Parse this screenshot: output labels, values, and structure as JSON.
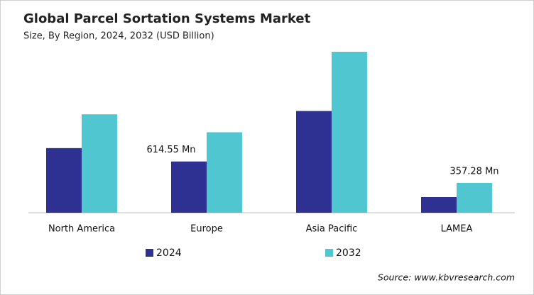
{
  "chart_data": {
    "type": "bar",
    "title": "Global Parcel Sortation Systems Market",
    "subtitle": "Size, By Region, 2024, 2032 (USD Billion)",
    "categories": [
      "North America",
      "Europe",
      "Asia Pacific",
      "LAMEA"
    ],
    "series": [
      {
        "name": "2024",
        "color": "#2e3192",
        "values": [
          775,
          614.55,
          1220,
          187
        ],
        "value_labels": [
          null,
          "614.55 Mn",
          null,
          null
        ]
      },
      {
        "name": "2032",
        "color": "#4fc6d0",
        "values": [
          1180,
          965,
          1930,
          357.28
        ],
        "value_labels": [
          null,
          null,
          null,
          "357.28 Mn"
        ]
      }
    ],
    "source": "Source: www.kbvresearch.com"
  }
}
